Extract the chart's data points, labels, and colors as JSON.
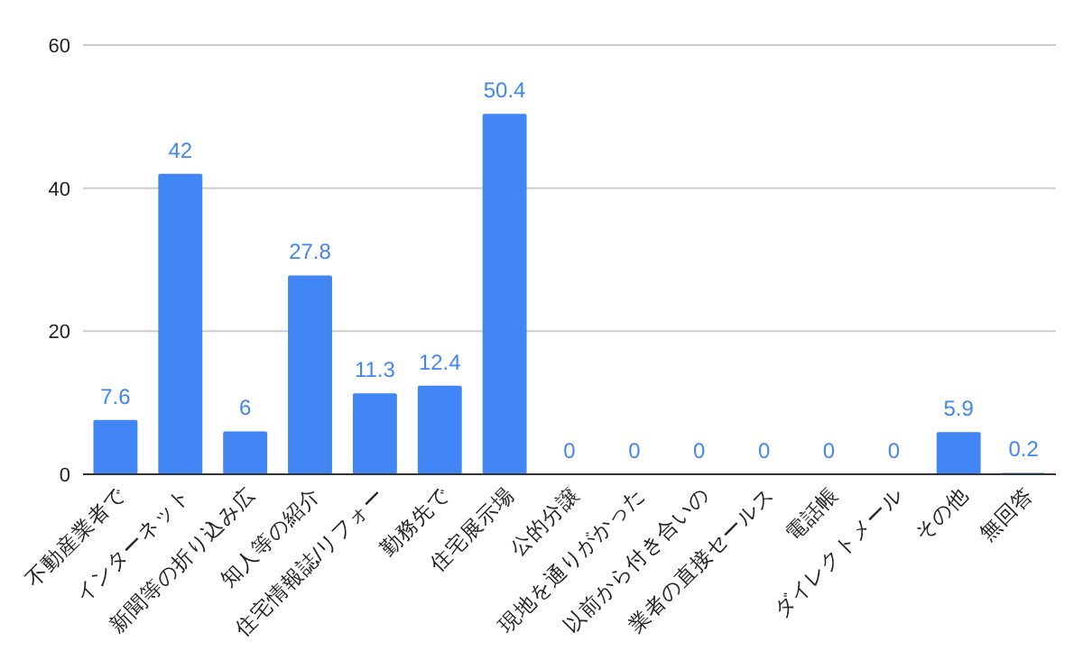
{
  "chart_data": {
    "type": "bar",
    "categories": [
      "不動産業者で",
      "インターネット",
      "新聞等の折り込み広",
      "知人等の紹介",
      "住宅情報誌/リフォー",
      "勤務先で",
      "住宅展示場",
      "公的分譲",
      "現地を通りがかった",
      "以前から付き合いの",
      "業者の直接セールス",
      "電話帳",
      "ダイレクトメール",
      "その他",
      "無回答"
    ],
    "values": [
      7.6,
      42,
      6,
      27.8,
      11.3,
      12.4,
      50.4,
      0,
      0,
      0,
      0,
      0,
      0,
      5.9,
      0.2
    ],
    "color": "#4285f4",
    "ylim": [
      0,
      60
    ],
    "yticks": [
      0,
      20,
      40,
      60
    ],
    "grid": "y",
    "data_labels": true
  }
}
